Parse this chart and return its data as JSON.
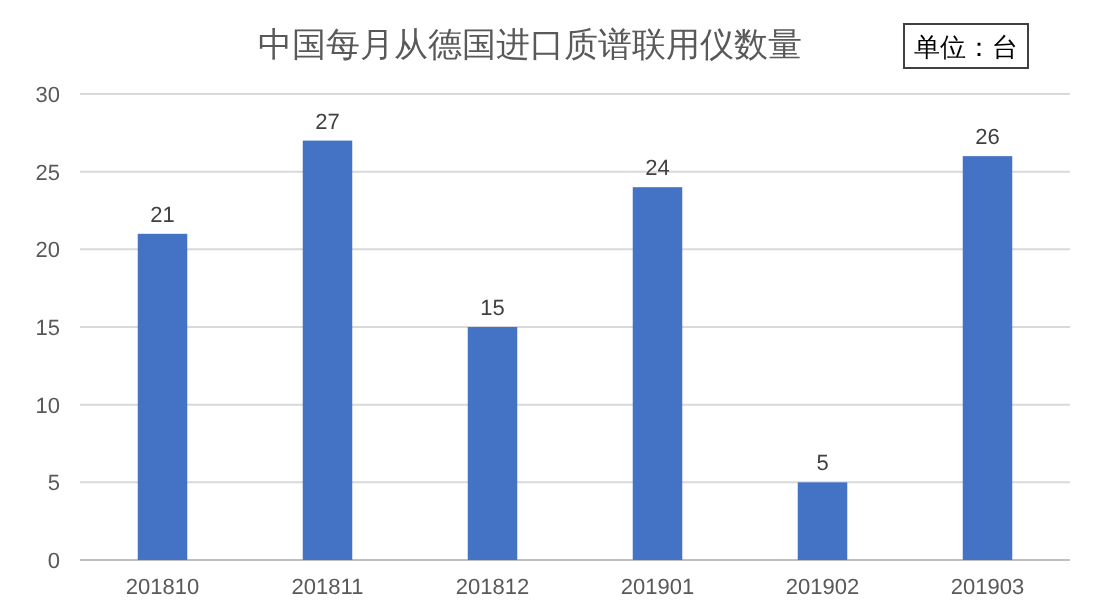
{
  "chart_data": {
    "type": "bar",
    "title": "中国每月从德国进口质谱联用仪数量",
    "annotations": [
      "单位：台"
    ],
    "categories": [
      "201810",
      "201811",
      "201812",
      "201901",
      "201902",
      "201903"
    ],
    "values": [
      21,
      27,
      15,
      24,
      5,
      26
    ],
    "color": "#4472c4",
    "ylim": [
      0,
      30
    ],
    "yticks": [
      0,
      5,
      10,
      15,
      20,
      25,
      30
    ],
    "grid": "y",
    "data_labels": true
  }
}
